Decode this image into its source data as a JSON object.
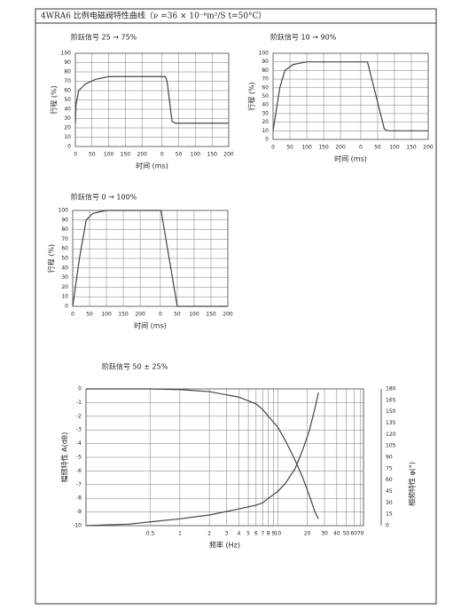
{
  "header": {
    "title": "4WRA6 比例电磁阀特性曲线（ν =36 × 10⁻⁶m²/S  t=50°C）"
  },
  "chart_data": [
    {
      "type": "line",
      "title": "阶跃信号 25 → 75%",
      "x_label": "时间 (ms)",
      "y_label": "行程 (%)",
      "xlim": [
        0,
        460
      ],
      "ylim": [
        0,
        100
      ],
      "xticks": [
        0,
        50,
        100,
        150,
        200,
        {
          "value": 260,
          "label": "0"
        },
        {
          "value": 310,
          "label": "50"
        },
        {
          "value": 360,
          "label": "100"
        },
        {
          "value": 410,
          "label": "150"
        },
        {
          "value": 460,
          "label": "200"
        }
      ],
      "yticks": [
        0,
        10,
        20,
        30,
        40,
        50,
        60,
        70,
        80,
        90,
        100
      ],
      "grid": true,
      "x": [
        0,
        2,
        10,
        30,
        60,
        100,
        200,
        270,
        275,
        290,
        300,
        460
      ],
      "series": [
        {
          "color": "#444444",
          "values": [
            25,
            45,
            60,
            67,
            72,
            75,
            75,
            75,
            70,
            27,
            25,
            25
          ]
        }
      ]
    },
    {
      "type": "line",
      "title": "阶跃信号 10 → 90%",
      "x_label": "时间 (ms)",
      "y_label": "行程 (%)",
      "xlim": [
        0,
        460
      ],
      "ylim": [
        0,
        100
      ],
      "xticks": [
        0,
        50,
        100,
        150,
        200,
        {
          "value": 260,
          "label": "0"
        },
        {
          "value": 310,
          "label": "50"
        },
        {
          "value": 360,
          "label": "100"
        },
        {
          "value": 410,
          "label": "150"
        },
        {
          "value": 460,
          "label": "200"
        }
      ],
      "yticks": [
        0,
        10,
        20,
        30,
        40,
        50,
        60,
        70,
        80,
        90,
        100
      ],
      "grid": true,
      "x": [
        0,
        20,
        35,
        60,
        100,
        200,
        280,
        330,
        340,
        460
      ],
      "series": [
        {
          "color": "#444444",
          "values": [
            10,
            60,
            80,
            87,
            90,
            90,
            90,
            12,
            10,
            10
          ]
        }
      ]
    },
    {
      "type": "line",
      "title": "阶跃信号 0 → 100%",
      "x_label": "时间 (ms)",
      "y_label": "行程 (%)",
      "xlim": [
        0,
        460
      ],
      "ylim": [
        0,
        100
      ],
      "xticks": [
        0,
        50,
        100,
        150,
        200,
        {
          "value": 260,
          "label": "0"
        },
        {
          "value": 310,
          "label": "50"
        },
        {
          "value": 360,
          "label": "100"
        },
        {
          "value": 410,
          "label": "150"
        },
        {
          "value": 460,
          "label": "200"
        }
      ],
      "yticks": [
        0,
        10,
        20,
        30,
        40,
        50,
        60,
        70,
        80,
        90,
        100
      ],
      "grid": true,
      "x": [
        0,
        20,
        40,
        60,
        100,
        200,
        262,
        310,
        460
      ],
      "series": [
        {
          "color": "#444444",
          "values": [
            0,
            50,
            90,
            97,
            100,
            100,
            100,
            0,
            0
          ]
        }
      ]
    },
    {
      "type": "line",
      "title": "阶跃信号 50 ± 25%",
      "x_label": "频率 (Hz)",
      "y_label": "幅频特性  A(dB)",
      "y2_label": "相频特性 φ(°)",
      "x_log": true,
      "xlim": [
        0.11,
        75
      ],
      "ylim": [
        -10,
        0
      ],
      "y2lim": [
        0,
        180
      ],
      "xticks": [
        0.5,
        1,
        2,
        3,
        4,
        5,
        6,
        7,
        8,
        9,
        10,
        20,
        30,
        40,
        50,
        60,
        70
      ],
      "yticks": [
        0,
        -1,
        -2,
        -3,
        -4,
        -5,
        -6,
        -7,
        -8,
        -9,
        -10
      ],
      "y2ticks": [
        180,
        165,
        150,
        135,
        120,
        105,
        90,
        75,
        60,
        45,
        30,
        15,
        0
      ],
      "grid": true,
      "x": [
        0.11,
        0.3,
        0.5,
        1,
        2,
        4,
        6,
        7,
        8,
        10,
        12,
        15,
        18,
        21,
        24,
        26
      ],
      "series": [
        {
          "color": "#444444",
          "values": [
            0,
            0,
            0,
            -0.05,
            -0.2,
            -0.6,
            -1.1,
            -1.5,
            -2,
            -2.8,
            -3.8,
            -5.2,
            -6.5,
            -7.8,
            -9,
            -9.5
          ]
        },
        {
          "color": "#444444",
          "axis": "y2",
          "values": [
            0,
            2,
            5,
            9,
            14,
            22,
            27,
            30,
            36,
            45,
            56,
            75,
            100,
            125,
            155,
            175
          ]
        }
      ]
    }
  ]
}
